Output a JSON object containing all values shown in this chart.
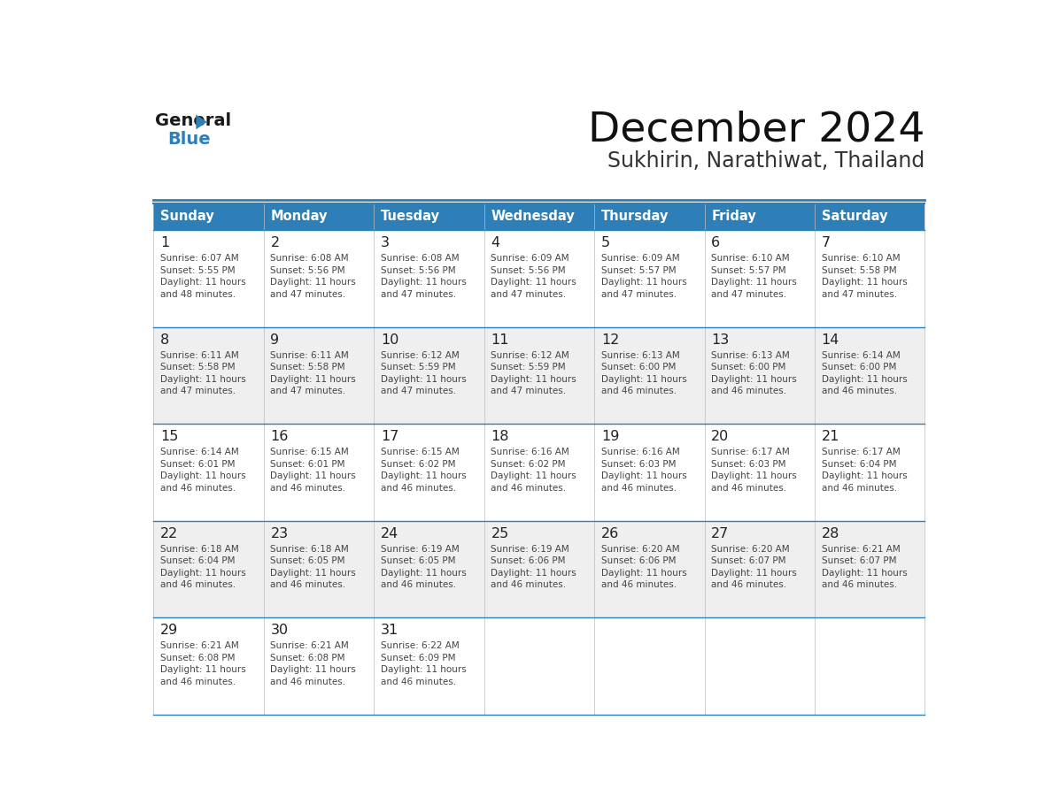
{
  "title": "December 2024",
  "subtitle": "Sukhirin, Narathiwat, Thailand",
  "header_bg_color": "#2e7fb8",
  "header_text_color": "#ffffff",
  "cell_bg_white": "#ffffff",
  "cell_bg_gray": "#efefef",
  "border_color": "#2e7fb8",
  "text_color": "#444444",
  "day_number_color": "#222222",
  "days_of_week": [
    "Sunday",
    "Monday",
    "Tuesday",
    "Wednesday",
    "Thursday",
    "Friday",
    "Saturday"
  ],
  "weeks": [
    [
      {
        "day": 1,
        "sunrise": "6:07 AM",
        "sunset": "5:55 PM",
        "daylight_hours": 11,
        "daylight_minutes": 48
      },
      {
        "day": 2,
        "sunrise": "6:08 AM",
        "sunset": "5:56 PM",
        "daylight_hours": 11,
        "daylight_minutes": 47
      },
      {
        "day": 3,
        "sunrise": "6:08 AM",
        "sunset": "5:56 PM",
        "daylight_hours": 11,
        "daylight_minutes": 47
      },
      {
        "day": 4,
        "sunrise": "6:09 AM",
        "sunset": "5:56 PM",
        "daylight_hours": 11,
        "daylight_minutes": 47
      },
      {
        "day": 5,
        "sunrise": "6:09 AM",
        "sunset": "5:57 PM",
        "daylight_hours": 11,
        "daylight_minutes": 47
      },
      {
        "day": 6,
        "sunrise": "6:10 AM",
        "sunset": "5:57 PM",
        "daylight_hours": 11,
        "daylight_minutes": 47
      },
      {
        "day": 7,
        "sunrise": "6:10 AM",
        "sunset": "5:58 PM",
        "daylight_hours": 11,
        "daylight_minutes": 47
      }
    ],
    [
      {
        "day": 8,
        "sunrise": "6:11 AM",
        "sunset": "5:58 PM",
        "daylight_hours": 11,
        "daylight_minutes": 47
      },
      {
        "day": 9,
        "sunrise": "6:11 AM",
        "sunset": "5:58 PM",
        "daylight_hours": 11,
        "daylight_minutes": 47
      },
      {
        "day": 10,
        "sunrise": "6:12 AM",
        "sunset": "5:59 PM",
        "daylight_hours": 11,
        "daylight_minutes": 47
      },
      {
        "day": 11,
        "sunrise": "6:12 AM",
        "sunset": "5:59 PM",
        "daylight_hours": 11,
        "daylight_minutes": 47
      },
      {
        "day": 12,
        "sunrise": "6:13 AM",
        "sunset": "6:00 PM",
        "daylight_hours": 11,
        "daylight_minutes": 46
      },
      {
        "day": 13,
        "sunrise": "6:13 AM",
        "sunset": "6:00 PM",
        "daylight_hours": 11,
        "daylight_minutes": 46
      },
      {
        "day": 14,
        "sunrise": "6:14 AM",
        "sunset": "6:00 PM",
        "daylight_hours": 11,
        "daylight_minutes": 46
      }
    ],
    [
      {
        "day": 15,
        "sunrise": "6:14 AM",
        "sunset": "6:01 PM",
        "daylight_hours": 11,
        "daylight_minutes": 46
      },
      {
        "day": 16,
        "sunrise": "6:15 AM",
        "sunset": "6:01 PM",
        "daylight_hours": 11,
        "daylight_minutes": 46
      },
      {
        "day": 17,
        "sunrise": "6:15 AM",
        "sunset": "6:02 PM",
        "daylight_hours": 11,
        "daylight_minutes": 46
      },
      {
        "day": 18,
        "sunrise": "6:16 AM",
        "sunset": "6:02 PM",
        "daylight_hours": 11,
        "daylight_minutes": 46
      },
      {
        "day": 19,
        "sunrise": "6:16 AM",
        "sunset": "6:03 PM",
        "daylight_hours": 11,
        "daylight_minutes": 46
      },
      {
        "day": 20,
        "sunrise": "6:17 AM",
        "sunset": "6:03 PM",
        "daylight_hours": 11,
        "daylight_minutes": 46
      },
      {
        "day": 21,
        "sunrise": "6:17 AM",
        "sunset": "6:04 PM",
        "daylight_hours": 11,
        "daylight_minutes": 46
      }
    ],
    [
      {
        "day": 22,
        "sunrise": "6:18 AM",
        "sunset": "6:04 PM",
        "daylight_hours": 11,
        "daylight_minutes": 46
      },
      {
        "day": 23,
        "sunrise": "6:18 AM",
        "sunset": "6:05 PM",
        "daylight_hours": 11,
        "daylight_minutes": 46
      },
      {
        "day": 24,
        "sunrise": "6:19 AM",
        "sunset": "6:05 PM",
        "daylight_hours": 11,
        "daylight_minutes": 46
      },
      {
        "day": 25,
        "sunrise": "6:19 AM",
        "sunset": "6:06 PM",
        "daylight_hours": 11,
        "daylight_minutes": 46
      },
      {
        "day": 26,
        "sunrise": "6:20 AM",
        "sunset": "6:06 PM",
        "daylight_hours": 11,
        "daylight_minutes": 46
      },
      {
        "day": 27,
        "sunrise": "6:20 AM",
        "sunset": "6:07 PM",
        "daylight_hours": 11,
        "daylight_minutes": 46
      },
      {
        "day": 28,
        "sunrise": "6:21 AM",
        "sunset": "6:07 PM",
        "daylight_hours": 11,
        "daylight_minutes": 46
      }
    ],
    [
      {
        "day": 29,
        "sunrise": "6:21 AM",
        "sunset": "6:08 PM",
        "daylight_hours": 11,
        "daylight_minutes": 46
      },
      {
        "day": 30,
        "sunrise": "6:21 AM",
        "sunset": "6:08 PM",
        "daylight_hours": 11,
        "daylight_minutes": 46
      },
      {
        "day": 31,
        "sunrise": "6:22 AM",
        "sunset": "6:09 PM",
        "daylight_hours": 11,
        "daylight_minutes": 46
      },
      null,
      null,
      null,
      null
    ]
  ],
  "logo_general_color": "#1a1a1a",
  "logo_blue_color": "#2e7fb8",
  "logo_triangle_color": "#2e7fb8"
}
